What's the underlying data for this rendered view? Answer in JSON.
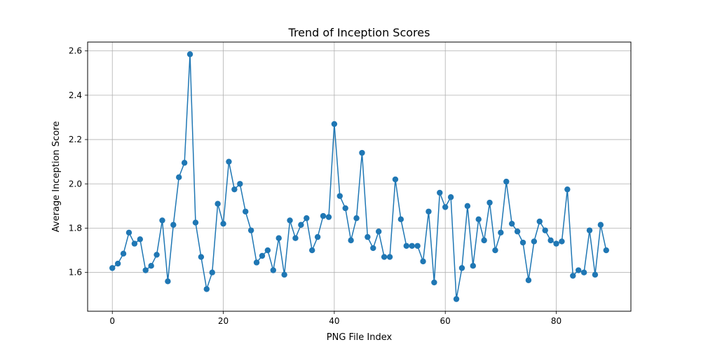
{
  "chart_data": {
    "type": "line",
    "title": "Trend of Inception Scores",
    "xlabel": "PNG File Index",
    "ylabel": "Average Inception Score",
    "xlim": [
      -4.45,
      93.45
    ],
    "ylim": [
      1.425,
      2.64
    ],
    "xticks": [
      0,
      20,
      40,
      60,
      80
    ],
    "yticks": [
      1.6,
      1.8,
      2.0,
      2.2,
      2.4,
      2.6
    ],
    "grid": true,
    "marker": "circle",
    "series": [
      {
        "color": "#1f77b4",
        "x": [
          0,
          1,
          2,
          3,
          4,
          5,
          6,
          7,
          8,
          9,
          10,
          11,
          12,
          13,
          14,
          15,
          16,
          17,
          18,
          19,
          20,
          21,
          22,
          23,
          24,
          25,
          26,
          27,
          28,
          29,
          30,
          31,
          32,
          33,
          34,
          35,
          36,
          37,
          38,
          39,
          40,
          41,
          42,
          43,
          44,
          45,
          46,
          47,
          48,
          49,
          50,
          51,
          52,
          53,
          54,
          55,
          56,
          57,
          58,
          59,
          60,
          61,
          62,
          63,
          64,
          65,
          66,
          67,
          68,
          69,
          70,
          71,
          72,
          73,
          74,
          75,
          76,
          77,
          78,
          79,
          80,
          81,
          82,
          83,
          84,
          85,
          86,
          87,
          88,
          89
        ],
        "values": [
          1.62,
          1.64,
          1.685,
          1.78,
          1.73,
          1.75,
          1.61,
          1.63,
          1.68,
          1.835,
          1.56,
          1.815,
          2.03,
          2.095,
          2.585,
          1.825,
          1.67,
          1.525,
          1.6,
          1.91,
          1.82,
          2.1,
          1.975,
          2.0,
          1.875,
          1.79,
          1.645,
          1.675,
          1.7,
          1.61,
          1.755,
          1.59,
          1.835,
          1.755,
          1.815,
          1.845,
          1.7,
          1.76,
          1.855,
          1.85,
          2.27,
          1.945,
          1.89,
          1.745,
          1.845,
          2.14,
          1.76,
          1.71,
          1.785,
          1.67,
          1.67,
          2.02,
          1.84,
          1.72,
          1.72,
          1.72,
          1.65,
          1.875,
          1.555,
          1.96,
          1.895,
          1.94,
          1.48,
          1.62,
          1.9,
          1.63,
          1.84,
          1.745,
          1.915,
          1.7,
          1.78,
          2.01,
          1.82,
          1.785,
          1.735,
          1.565,
          1.74,
          1.83,
          1.79,
          1.745,
          1.73,
          1.74,
          1.975,
          1.585,
          1.61,
          1.6,
          1.79,
          1.59,
          1.815,
          1.7
        ]
      }
    ]
  }
}
